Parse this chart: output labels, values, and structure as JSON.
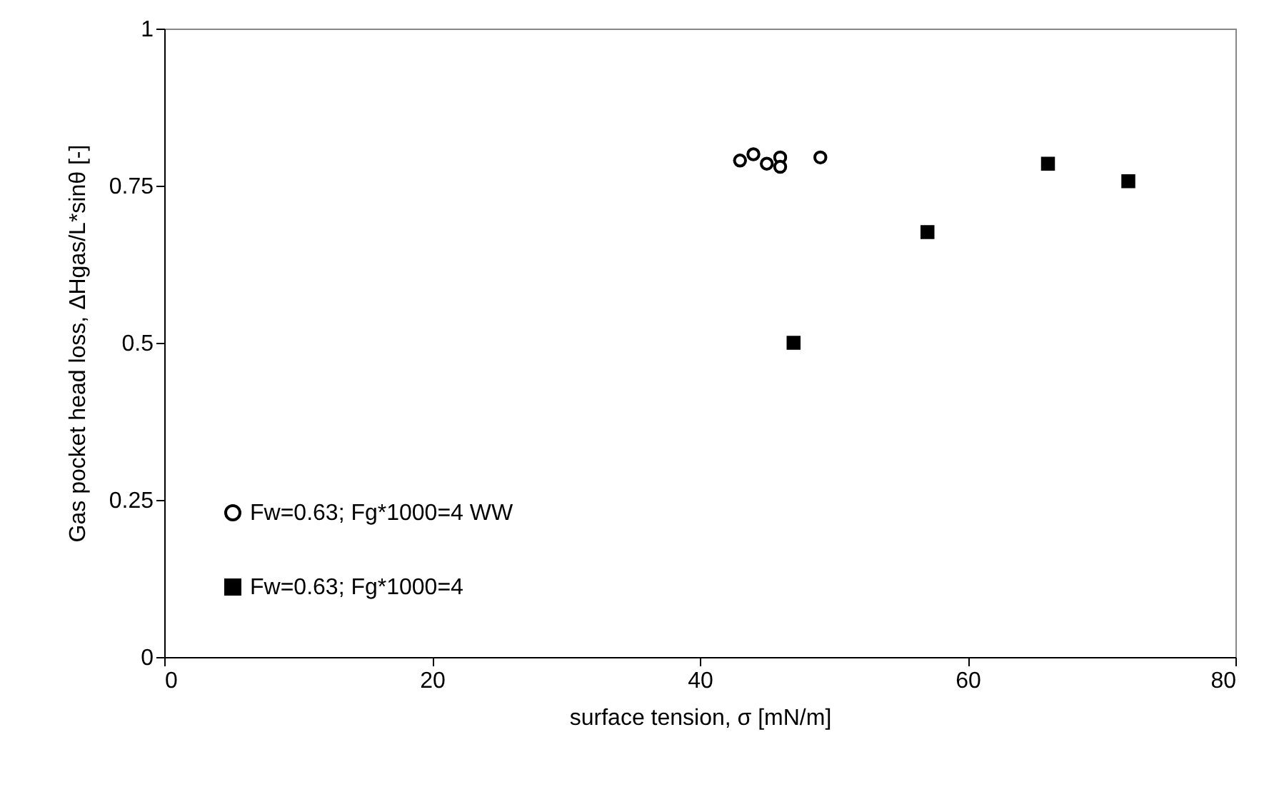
{
  "chart_data": {
    "type": "scatter",
    "xlabel": "surface tension, σ [mN/m]",
    "ylabel": "Gas pocket head loss, ΔHgas/L*sinθ [-]",
    "series": [
      {
        "name": "Fw=0.63; Fg*1000=4 WW",
        "color": "#000000",
        "marker": "circle",
        "x": [
          43,
          44,
          45,
          46,
          46,
          49
        ],
        "values": [
          0.79,
          0.8,
          0.785,
          0.795,
          0.78,
          0.795
        ]
      },
      {
        "name": "Fw=0.63; Fg*1000=4",
        "color": "#000000",
        "marker": "square",
        "x": [
          47,
          57,
          66,
          72
        ],
        "values": [
          0.5,
          0.676,
          0.785,
          0.757
        ]
      }
    ],
    "xlim": [
      0,
      80
    ],
    "xticks": [
      0,
      20,
      40,
      60,
      80
    ],
    "ylim": [
      0,
      1
    ],
    "yticks": [
      0,
      0.25,
      0.5,
      0.75,
      1
    ],
    "grid": false,
    "legend": "bottom left"
  }
}
